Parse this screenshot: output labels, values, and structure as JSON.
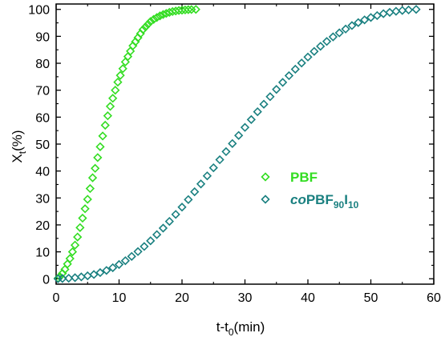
{
  "chart_data": {
    "type": "scatter",
    "title": "",
    "xlabel": {
      "main": "t-t",
      "sub": "0",
      "tail": "(min)"
    },
    "ylabel": {
      "main": "X",
      "sub": "t",
      "tail": "(%)"
    },
    "xlim": [
      0,
      60
    ],
    "ylim": [
      -2,
      102
    ],
    "xticks": [
      "0",
      "10",
      "20",
      "30",
      "40",
      "50",
      "60"
    ],
    "yticks": [
      "0",
      "10",
      "20",
      "30",
      "40",
      "50",
      "60",
      "70",
      "80",
      "90",
      "100"
    ],
    "grid": false,
    "legend_position": "center-right",
    "marker": "diamond-open",
    "series": [
      {
        "name": "PBF",
        "legend_parts": [
          {
            "text": "PBF",
            "style": "normal"
          }
        ],
        "color": "#33dd22",
        "x": [
          0.3,
          0.6,
          1,
          1.4,
          1.8,
          2.2,
          2.6,
          3,
          3.4,
          3.8,
          4.2,
          4.6,
          5,
          5.4,
          5.8,
          6.2,
          6.6,
          7,
          7.4,
          7.8,
          8.2,
          8.6,
          9,
          9.4,
          9.8,
          10.2,
          10.6,
          11,
          11.4,
          11.8,
          12.2,
          12.6,
          13,
          13.4,
          13.8,
          14.2,
          14.6,
          15,
          15.5,
          16,
          16.5,
          17,
          17.5,
          18,
          18.5,
          19,
          19.5,
          20,
          20.5,
          21,
          21.5,
          22.2
        ],
        "y": [
          0.2,
          0.8,
          2,
          3.5,
          5.5,
          7.5,
          10,
          12.5,
          15.5,
          19,
          22.5,
          26,
          29.5,
          33.5,
          37.5,
          41,
          45,
          49,
          53,
          57,
          60.5,
          64,
          67,
          70,
          73,
          75.5,
          78,
          80.5,
          82.5,
          84.5,
          86.5,
          88,
          89.5,
          91,
          92.5,
          93.5,
          94.5,
          95.5,
          96.3,
          97,
          97.6,
          98.1,
          98.5,
          98.9,
          99.2,
          99.4,
          99.6,
          99.7,
          99.8,
          99.9,
          99.95,
          100
        ]
      },
      {
        "name": "coPBF90I10",
        "legend_parts": [
          {
            "text": "co",
            "style": "italic"
          },
          {
            "text": "PBF",
            "style": "normal"
          },
          {
            "text": "90",
            "style": "sub"
          },
          {
            "text": "I",
            "style": "normal"
          },
          {
            "text": "10",
            "style": "sub"
          }
        ],
        "color": "#1a8080",
        "x": [
          0.3,
          1,
          2,
          3,
          4,
          5,
          6,
          7,
          8,
          9,
          10,
          11,
          12,
          13,
          14,
          15,
          16,
          17,
          18,
          19,
          20,
          21,
          22,
          23,
          24,
          25,
          26,
          27,
          28,
          29,
          30,
          31,
          32,
          33,
          34,
          35,
          36,
          37,
          38,
          39,
          40,
          41,
          42,
          43,
          44,
          45,
          46,
          47,
          48,
          49,
          50,
          51,
          52,
          53,
          54,
          55,
          56,
          57.2
        ],
        "y": [
          0,
          0.1,
          0.2,
          0.4,
          0.7,
          1.1,
          1.6,
          2.3,
          3.1,
          4.1,
          5.3,
          6.7,
          8.3,
          10.1,
          12,
          14.1,
          16.4,
          18.8,
          21.3,
          23.9,
          26.6,
          29.4,
          32.3,
          35.2,
          38.2,
          41.2,
          44.2,
          47.2,
          50.2,
          53.2,
          56.2,
          59.1,
          62,
          64.8,
          67.6,
          70.3,
          72.9,
          75.4,
          77.8,
          80.1,
          82.3,
          84.4,
          86.3,
          88.1,
          89.8,
          91.3,
          92.7,
          94,
          95.1,
          96.1,
          97,
          97.7,
          98.4,
          98.9,
          99.3,
          99.6,
          99.8,
          100
        ]
      }
    ]
  }
}
